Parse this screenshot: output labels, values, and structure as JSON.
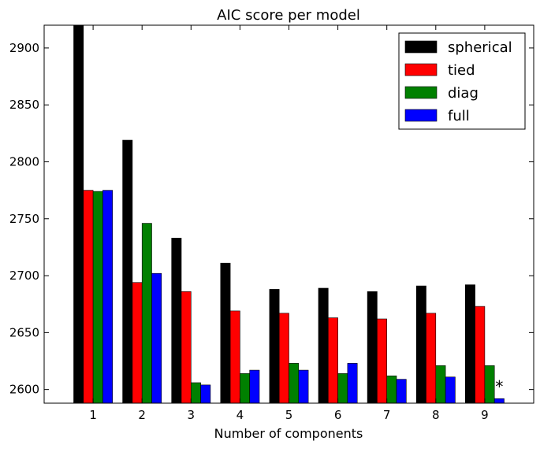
{
  "chart_data": {
    "type": "bar",
    "title": "AIC score per model",
    "xlabel": "Number of components",
    "ylabel": "",
    "categories": [
      "1",
      "2",
      "3",
      "4",
      "5",
      "6",
      "7",
      "8",
      "9"
    ],
    "series": [
      {
        "name": "spherical",
        "color": "#000000",
        "values": [
          2920,
          2819,
          2733,
          2711,
          2688,
          2689,
          2686,
          2691,
          2692
        ]
      },
      {
        "name": "tied",
        "color": "#ff0000",
        "values": [
          2775,
          2694,
          2686,
          2669,
          2667,
          2663,
          2662,
          2667,
          2673
        ]
      },
      {
        "name": "diag",
        "color": "#008000",
        "values": [
          2774,
          2746,
          2606,
          2614,
          2623,
          2614,
          2612,
          2621,
          2621
        ]
      },
      {
        "name": "full",
        "color": "#0000ff",
        "values": [
          2775,
          2702,
          2604,
          2617,
          2617,
          2623,
          2609,
          2611,
          2592
        ]
      }
    ],
    "ylim": [
      2588,
      2920
    ],
    "yticks": [
      2600,
      2650,
      2700,
      2750,
      2800,
      2850,
      2900
    ],
    "grid": false,
    "legend_position": "top-right",
    "annotation": {
      "text": "*",
      "category": "9",
      "series": "full"
    }
  }
}
